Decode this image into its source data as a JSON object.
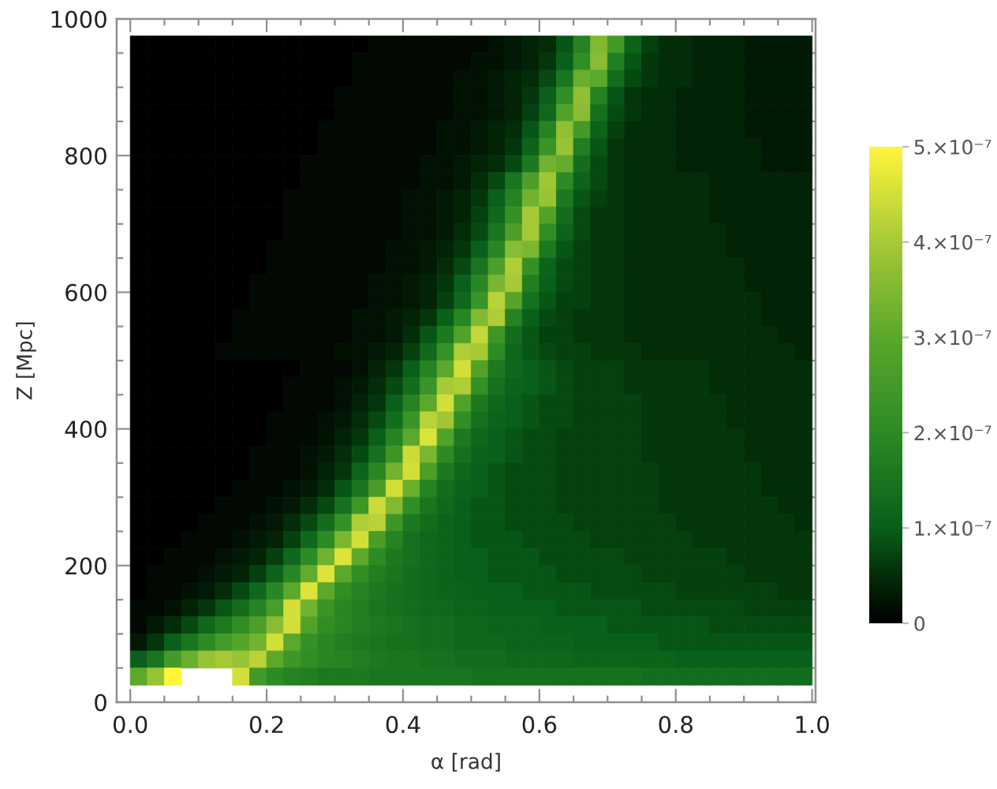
{
  "chart_data": {
    "type": "heatmap",
    "xlabel": "α [rad]",
    "ylabel": "Z [Mpc]",
    "xlim": [
      -0.02,
      1.005
    ],
    "ylim": [
      0,
      1000
    ],
    "xticks": [
      {
        "value": 0,
        "label": "0.0"
      },
      {
        "value": 0.05,
        "label": null
      },
      {
        "value": 0.1,
        "label": null
      },
      {
        "value": 0.15,
        "label": null
      },
      0.2,
      {
        "value": 0.25,
        "label": null
      },
      {
        "value": 0.3,
        "label": null
      },
      {
        "value": 0.35,
        "label": null
      },
      0.4,
      {
        "value": 0.45,
        "label": null
      },
      {
        "value": 0.5,
        "label": null
      },
      {
        "value": 0.55,
        "label": null
      },
      0.6,
      {
        "value": 0.65,
        "label": null
      },
      {
        "value": 0.7,
        "label": null
      },
      {
        "value": 0.75,
        "label": null
      },
      0.8,
      {
        "value": 0.85,
        "label": null
      },
      {
        "value": 0.9,
        "label": null
      },
      {
        "value": 0.95,
        "label": null
      },
      {
        "value": 1,
        "label": "1.0"
      }
    ],
    "yticks": [
      0,
      {
        "value": 50,
        "label": null
      },
      {
        "value": 100,
        "label": null
      },
      {
        "value": 150,
        "label": null
      },
      200,
      {
        "value": 250,
        "label": null
      },
      {
        "value": 300,
        "label": null
      },
      {
        "value": 350,
        "label": null
      },
      400,
      {
        "value": 450,
        "label": null
      },
      {
        "value": 500,
        "label": null
      },
      {
        "value": 550,
        "label": null
      },
      600,
      {
        "value": 650,
        "label": null
      },
      {
        "value": 700,
        "label": null
      },
      {
        "value": 750,
        "label": null
      },
      800,
      {
        "value": 850,
        "label": null
      },
      {
        "value": 900,
        "label": null
      },
      {
        "value": 950,
        "label": null
      },
      1000
    ],
    "clim": [
      0,
      5e-07
    ],
    "cticks": [
      0,
      {
        "value": 1e-07,
        "label": "1.×10⁻⁷"
      },
      {
        "value": 2e-07,
        "label": "2.×10⁻⁷"
      },
      {
        "value": 3e-07,
        "label": "3.×10⁻⁷"
      },
      {
        "value": 4e-07,
        "label": "4.×10⁻⁷"
      },
      {
        "value": 5e-07,
        "label": "5.×10⁻⁷"
      }
    ],
    "x": [
      0.0125,
      0.0375,
      0.0625,
      0.0875,
      0.1125,
      0.1375,
      0.1625,
      0.1875,
      0.2125,
      0.2375,
      0.2625,
      0.2875,
      0.3125,
      0.3375,
      0.3625,
      0.3875,
      0.4125,
      0.4375,
      0.4625,
      0.4875,
      0.5125,
      0.5375,
      0.5625,
      0.5875,
      0.6125,
      0.6375,
      0.6625,
      0.6875,
      0.7125,
      0.7375,
      0.7625,
      0.7875,
      0.8125,
      0.8375,
      0.8625,
      0.8875,
      0.9125,
      0.9375,
      0.9625,
      0.9875
    ],
    "y": [
      962.5,
      937.5,
      912.5,
      887.5,
      862.5,
      837.5,
      812.5,
      787.5,
      762.5,
      737.5,
      712.5,
      687.5,
      662.5,
      637.5,
      612.5,
      587.5,
      562.5,
      537.5,
      512.5,
      487.5,
      462.5,
      437.5,
      412.5,
      387.5,
      362.5,
      337.5,
      312.5,
      287.5,
      262.5,
      237.5,
      212.5,
      187.5,
      162.5,
      137.5,
      112.5,
      87.5,
      62.5,
      37.5
    ],
    "cells": [
      [
        0,
        0,
        0,
        0,
        0,
        0,
        0,
        0,
        0,
        0,
        0,
        0,
        0,
        0,
        1e-08,
        1e-08,
        1e-08,
        1e-08,
        1e-08,
        1e-08,
        1e-08,
        2e-08,
        3e-08,
        4e-08,
        5e-08,
        9e-08,
        1.8e-07,
        3.5e-07,
        2.5e-07,
        1.1e-07,
        7e-08,
        5e-08,
        5e-08,
        4e-08,
        4e-08,
        4e-08,
        3e-08,
        3e-08,
        3e-08,
        3e-08
      ],
      [
        0,
        0,
        0,
        0,
        0,
        0,
        0,
        0,
        0,
        0,
        0,
        0,
        0,
        1e-08,
        1e-08,
        1e-08,
        1e-08,
        1e-08,
        1e-08,
        1e-08,
        2e-08,
        2e-08,
        3e-08,
        4e-08,
        6e-08,
        1e-07,
        2.1e-07,
        3.6e-07,
        1.7e-07,
        9e-08,
        6e-08,
        5e-08,
        5e-08,
        4e-08,
        4e-08,
        4e-08,
        3e-08,
        3e-08,
        3e-08,
        3e-08
      ],
      [
        0,
        0,
        0,
        0,
        0,
        0,
        0,
        0,
        0,
        0,
        0,
        0,
        0,
        1e-08,
        1e-08,
        1e-08,
        1e-08,
        1e-08,
        1e-08,
        2e-08,
        2e-08,
        3e-08,
        4e-08,
        5e-08,
        8e-08,
        1.5e-07,
        3.2e-07,
        3e-07,
        1.3e-07,
        8e-08,
        6e-08,
        5e-08,
        5e-08,
        4e-08,
        4e-08,
        4e-08,
        3e-08,
        3e-08,
        3e-08,
        3e-08
      ],
      [
        0,
        0,
        0,
        0,
        0,
        0,
        0,
        0,
        0,
        0,
        0,
        0,
        1e-08,
        1e-08,
        1e-08,
        1e-08,
        1e-08,
        1e-08,
        1e-08,
        2e-08,
        2e-08,
        3e-08,
        4e-08,
        6e-08,
        1e-07,
        2.1e-07,
        3.7e-07,
        1.8e-07,
        9e-08,
        6e-08,
        5e-08,
        5e-08,
        4e-08,
        4e-08,
        4e-08,
        4e-08,
        3e-08,
        3e-08,
        3e-08,
        3e-08
      ],
      [
        0,
        0,
        0,
        0,
        0,
        0,
        0,
        0,
        0,
        0,
        0,
        0,
        1e-08,
        1e-08,
        1e-08,
        1e-08,
        1e-08,
        1e-08,
        1e-08,
        2e-08,
        2e-08,
        3e-08,
        4e-08,
        7e-08,
        1.2e-07,
        2.8e-07,
        3.6e-07,
        1.4e-07,
        8e-08,
        6e-08,
        5e-08,
        5e-08,
        4e-08,
        4e-08,
        4e-08,
        4e-08,
        3e-08,
        3e-08,
        3e-08,
        3e-08
      ],
      [
        0,
        0,
        0,
        0,
        0,
        0,
        0,
        0,
        0,
        0,
        0,
        1e-08,
        1e-08,
        1e-08,
        1e-08,
        1e-08,
        1e-08,
        1e-08,
        2e-08,
        2e-08,
        3e-08,
        4e-08,
        5e-08,
        9e-08,
        1.8e-07,
        3.7e-07,
        2.5e-07,
        1.1e-07,
        7e-08,
        5e-08,
        5e-08,
        5e-08,
        4e-08,
        4e-08,
        4e-08,
        4e-08,
        3e-08,
        3e-08,
        3e-08,
        3e-08
      ],
      [
        0,
        0,
        0,
        0,
        0,
        0,
        0,
        0,
        0,
        0,
        0,
        1e-08,
        1e-08,
        1e-08,
        1e-08,
        1e-08,
        1e-08,
        1e-08,
        2e-08,
        2e-08,
        3e-08,
        4e-08,
        6e-08,
        1.1e-07,
        2.3e-07,
        3.8e-07,
        1.7e-07,
        9e-08,
        6e-08,
        5e-08,
        5e-08,
        5e-08,
        4e-08,
        4e-08,
        4e-08,
        4e-08,
        4e-08,
        3e-08,
        3e-08,
        3e-08
      ],
      [
        0,
        0,
        0,
        0,
        0,
        0,
        0,
        0,
        0,
        0,
        1e-08,
        1e-08,
        1e-08,
        1e-08,
        1e-08,
        1e-08,
        1e-08,
        2e-08,
        2e-08,
        3e-08,
        4e-08,
        5e-08,
        8e-08,
        1.6e-07,
        3.3e-07,
        3.1e-07,
        1.3e-07,
        8e-08,
        6e-08,
        5e-08,
        5e-08,
        5e-08,
        4e-08,
        4e-08,
        4e-08,
        4e-08,
        4e-08,
        3e-08,
        3e-08,
        3e-08
      ],
      [
        0,
        0,
        0,
        0,
        0,
        0,
        0,
        0,
        0,
        0,
        1e-08,
        1e-08,
        1e-08,
        1e-08,
        1e-08,
        1e-08,
        1e-08,
        2e-08,
        2e-08,
        3e-08,
        5e-08,
        8e-08,
        1.5e-07,
        2.7e-07,
        3.9e-07,
        2e-07,
        1.1e-07,
        8e-08,
        6e-08,
        5e-08,
        5e-08,
        5e-08,
        5e-08,
        5e-08,
        4e-08,
        4e-08,
        4e-08,
        4e-08,
        4e-08,
        4e-08
      ],
      [
        0,
        0,
        0,
        0,
        0,
        0,
        0,
        0,
        0,
        1e-08,
        1e-08,
        1e-08,
        1e-08,
        1e-08,
        1e-08,
        1e-08,
        2e-08,
        2e-08,
        3e-08,
        4e-08,
        6e-08,
        1e-07,
        1.8e-07,
        3.3e-07,
        3.8e-07,
        1.6e-07,
        9e-08,
        7e-08,
        6e-08,
        5e-08,
        5e-08,
        5e-08,
        5e-08,
        5e-08,
        4e-08,
        4e-08,
        4e-08,
        4e-08,
        4e-08,
        4e-08
      ],
      [
        0,
        0,
        0,
        0,
        0,
        0,
        0,
        0,
        0,
        1e-08,
        1e-08,
        1e-08,
        1e-08,
        1e-08,
        1e-08,
        1e-08,
        2e-08,
        2e-08,
        3e-08,
        4e-08,
        7e-08,
        1.2e-07,
        2.2e-07,
        4e-07,
        2.8e-07,
        1.3e-07,
        8e-08,
        6e-08,
        6e-08,
        5e-08,
        5e-08,
        5e-08,
        5e-08,
        5e-08,
        4e-08,
        4e-08,
        4e-08,
        4e-08,
        4e-08,
        4e-08
      ],
      [
        0,
        0,
        0,
        0,
        0,
        0,
        0,
        0,
        0,
        1e-08,
        1e-08,
        1e-08,
        1e-08,
        1e-08,
        1e-08,
        1e-08,
        2e-08,
        2e-08,
        3e-08,
        5e-08,
        8e-08,
        1.5e-07,
        2.7e-07,
        4e-07,
        2.1e-07,
        1.1e-07,
        8e-08,
        6e-08,
        6e-08,
        5e-08,
        5e-08,
        5e-08,
        5e-08,
        5e-08,
        5e-08,
        4e-08,
        4e-08,
        4e-08,
        4e-08,
        4e-08
      ],
      [
        0,
        0,
        0,
        0,
        0,
        0,
        0,
        0,
        1e-08,
        1e-08,
        1e-08,
        1e-08,
        1e-08,
        1e-08,
        1e-08,
        2e-08,
        2e-08,
        3e-08,
        4e-08,
        6e-08,
        1e-07,
        1.9e-07,
        3.6e-07,
        3.4e-07,
        1.6e-07,
        9e-08,
        7e-08,
        6e-08,
        6e-08,
        5e-08,
        5e-08,
        5e-08,
        5e-08,
        5e-08,
        5e-08,
        4e-08,
        4e-08,
        4e-08,
        4e-08,
        4e-08
      ],
      [
        0,
        0,
        0,
        0,
        0,
        0,
        0,
        0,
        1e-08,
        1e-08,
        1e-08,
        1e-08,
        1e-08,
        1e-08,
        1e-08,
        2e-08,
        2e-08,
        3e-08,
        5e-08,
        8e-08,
        1.5e-07,
        2.7e-07,
        4.1e-07,
        2.2e-07,
        1.1e-07,
        8e-08,
        7e-08,
        6e-08,
        6e-08,
        5e-08,
        5e-08,
        5e-08,
        5e-08,
        5e-08,
        5e-08,
        5e-08,
        4e-08,
        4e-08,
        4e-08,
        4e-08
      ],
      [
        0,
        0,
        0,
        0,
        0,
        0,
        0,
        1e-08,
        1e-08,
        1e-08,
        1e-08,
        1e-08,
        1e-08,
        1e-08,
        2e-08,
        2e-08,
        3e-08,
        4e-08,
        6e-08,
        1e-07,
        1.9e-07,
        3.4e-07,
        4e-07,
        1.7e-07,
        1e-07,
        8e-08,
        7e-08,
        6e-08,
        6e-08,
        5e-08,
        5e-08,
        5e-08,
        5e-08,
        5e-08,
        5e-08,
        5e-08,
        4e-08,
        4e-08,
        4e-08,
        4e-08
      ],
      [
        0,
        0,
        0,
        0,
        0,
        0,
        0,
        1e-08,
        1e-08,
        1e-08,
        1e-08,
        1e-08,
        1e-08,
        1e-08,
        2e-08,
        2e-08,
        3e-08,
        4e-08,
        7e-08,
        1.2e-07,
        2.3e-07,
        4.2e-07,
        2.9e-07,
        1.4e-07,
        9e-08,
        7e-08,
        7e-08,
        6e-08,
        6e-08,
        5e-08,
        5e-08,
        5e-08,
        5e-08,
        5e-08,
        5e-08,
        5e-08,
        5e-08,
        4e-08,
        4e-08,
        4e-08
      ],
      [
        0,
        0,
        0,
        0,
        0,
        0,
        1e-08,
        1e-08,
        1e-08,
        1e-08,
        1e-08,
        1e-08,
        1e-08,
        2e-08,
        2e-08,
        3e-08,
        4e-08,
        6e-08,
        1e-07,
        1.9e-07,
        3.5e-07,
        4.1e-07,
        1.8e-07,
        1e-07,
        8e-08,
        7e-08,
        6e-08,
        6e-08,
        6e-08,
        5e-08,
        5e-08,
        5e-08,
        5e-08,
        5e-08,
        5e-08,
        5e-08,
        5e-08,
        4e-08,
        4e-08,
        4e-08
      ],
      [
        0,
        0,
        0,
        0,
        0,
        0,
        1e-08,
        1e-08,
        1e-08,
        1e-08,
        1e-08,
        1e-08,
        1e-08,
        2e-08,
        2e-08,
        3e-08,
        5e-08,
        9e-08,
        1.6e-07,
        2.8e-07,
        4.3e-07,
        2.4e-07,
        1.3e-07,
        9e-08,
        7e-08,
        7e-08,
        6e-08,
        6e-08,
        6e-08,
        5e-08,
        5e-08,
        5e-08,
        5e-08,
        5e-08,
        5e-08,
        5e-08,
        5e-08,
        5e-08,
        4e-08,
        4e-08
      ],
      [
        0,
        0,
        0,
        0,
        0,
        1e-08,
        1e-08,
        1e-08,
        1e-08,
        1e-08,
        1e-08,
        1e-08,
        2e-08,
        2e-08,
        3e-08,
        4e-08,
        7e-08,
        1.2e-07,
        2.2e-07,
        4.1e-07,
        4e-07,
        2e-07,
        1.2e-07,
        9e-08,
        8e-08,
        7e-08,
        7e-08,
        6e-08,
        6e-08,
        6e-08,
        5e-08,
        5e-08,
        5e-08,
        5e-08,
        5e-08,
        5e-08,
        5e-08,
        5e-08,
        5e-08,
        4e-08
      ],
      [
        0,
        0,
        0,
        0,
        0,
        0,
        0,
        0,
        0,
        0,
        1e-08,
        1e-08,
        1e-08,
        2e-08,
        4e-08,
        6e-08,
        1e-07,
        1.8e-07,
        3e-07,
        4.5e-07,
        2.8e-07,
        1.6e-07,
        1.2e-07,
        1e-07,
        9e-08,
        8e-08,
        7e-08,
        7e-08,
        7e-08,
        6e-08,
        6e-08,
        6e-08,
        6e-08,
        6e-08,
        5e-08,
        5e-08,
        5e-08,
        5e-08,
        5e-08,
        5e-08
      ],
      [
        0,
        0,
        0,
        0,
        0,
        0,
        0,
        0,
        0,
        1e-08,
        1e-08,
        1e-08,
        2e-08,
        3e-08,
        5e-08,
        8e-08,
        1.3e-07,
        2.3e-07,
        4e-07,
        4.1e-07,
        2.2e-07,
        1.4e-07,
        1.1e-07,
        1e-07,
        9e-08,
        8e-08,
        7e-08,
        7e-08,
        7e-08,
        6e-08,
        6e-08,
        6e-08,
        6e-08,
        6e-08,
        5e-08,
        5e-08,
        5e-08,
        5e-08,
        5e-08,
        5e-08
      ],
      [
        0,
        0,
        0,
        0,
        0,
        0,
        0,
        0,
        0,
        1e-08,
        1e-08,
        1e-08,
        2e-08,
        4e-08,
        6e-08,
        1e-07,
        1.8e-07,
        3e-07,
        4.5e-07,
        2.8e-07,
        1.6e-07,
        1.2e-07,
        1e-07,
        9e-08,
        8e-08,
        8e-08,
        7e-08,
        7e-08,
        7e-08,
        7e-08,
        6e-08,
        6e-08,
        6e-08,
        6e-08,
        6e-08,
        5e-08,
        5e-08,
        5e-08,
        5e-08,
        5e-08
      ],
      [
        0,
        0,
        0,
        0,
        0,
        0,
        0,
        0,
        1e-08,
        1e-08,
        1e-08,
        2e-08,
        3e-08,
        5e-08,
        8e-08,
        1.3e-07,
        2.3e-07,
        4.2e-07,
        3.9e-07,
        2.1e-07,
        1.4e-07,
        1.1e-07,
        1e-07,
        9e-08,
        8e-08,
        8e-08,
        7e-08,
        7e-08,
        7e-08,
        7e-08,
        6e-08,
        6e-08,
        6e-08,
        6e-08,
        6e-08,
        5e-08,
        5e-08,
        5e-08,
        5e-08,
        5e-08
      ],
      [
        0,
        0,
        0,
        0,
        0,
        0,
        0,
        0,
        1e-08,
        1e-08,
        1e-08,
        2e-08,
        4e-08,
        6e-08,
        1e-07,
        1.8e-07,
        3e-07,
        4.6e-07,
        2.8e-07,
        1.6e-07,
        1.2e-07,
        1e-07,
        9e-08,
        8e-08,
        8e-08,
        7e-08,
        7e-08,
        7e-08,
        7e-08,
        7e-08,
        6e-08,
        6e-08,
        6e-08,
        6e-08,
        6e-08,
        6e-08,
        5e-08,
        5e-08,
        5e-08,
        5e-08
      ],
      [
        0,
        0,
        0,
        0,
        0,
        0,
        0,
        1e-08,
        1e-08,
        1e-08,
        2e-08,
        3e-08,
        5e-08,
        8e-08,
        1.4e-07,
        2.4e-07,
        4.4e-07,
        3.4e-07,
        2e-07,
        1.4e-07,
        1.1e-07,
        1e-07,
        9e-08,
        8e-08,
        8e-08,
        7e-08,
        7e-08,
        7e-08,
        7e-08,
        7e-08,
        6e-08,
        6e-08,
        6e-08,
        6e-08,
        6e-08,
        6e-08,
        5e-08,
        5e-08,
        5e-08,
        5e-08
      ],
      [
        0,
        0,
        0,
        0,
        0,
        0,
        0,
        1e-08,
        1e-08,
        1e-08,
        2e-08,
        4e-08,
        6e-08,
        1.1e-07,
        1.9e-07,
        3.3e-07,
        4.5e-07,
        2.7e-07,
        1.6e-07,
        1.2e-07,
        1e-07,
        9e-08,
        8e-08,
        8e-08,
        8e-08,
        7e-08,
        7e-08,
        7e-08,
        7e-08,
        7e-08,
        7e-08,
        6e-08,
        6e-08,
        6e-08,
        6e-08,
        6e-08,
        6e-08,
        5e-08,
        5e-08,
        5e-08
      ],
      [
        0,
        0,
        0,
        0,
        0,
        0,
        1e-08,
        1e-08,
        1e-08,
        2e-08,
        3e-08,
        5e-08,
        9e-08,
        1.5e-07,
        2.6e-07,
        4.5e-07,
        3.2e-07,
        1.8e-07,
        1.3e-07,
        1.1e-07,
        1e-07,
        9e-08,
        8e-08,
        8e-08,
        8e-08,
        7e-08,
        7e-08,
        7e-08,
        7e-08,
        7e-08,
        7e-08,
        6e-08,
        6e-08,
        6e-08,
        6e-08,
        6e-08,
        6e-08,
        5e-08,
        5e-08,
        5e-08
      ],
      [
        0,
        0,
        0,
        0,
        0,
        1e-08,
        1e-08,
        1e-08,
        2e-08,
        3e-08,
        5e-08,
        8e-08,
        1.4e-07,
        2.4e-07,
        4.4e-07,
        3.5e-07,
        2.1e-07,
        1.5e-07,
        1.2e-07,
        1e-07,
        9e-08,
        9e-08,
        8e-08,
        8e-08,
        8e-08,
        7e-08,
        7e-08,
        7e-08,
        7e-08,
        7e-08,
        7e-08,
        6e-08,
        6e-08,
        6e-08,
        6e-08,
        6e-08,
        6e-08,
        6e-08,
        5e-08,
        5e-08
      ],
      [
        0,
        0,
        0,
        0,
        1e-08,
        1e-08,
        1e-08,
        2e-08,
        3e-08,
        5e-08,
        8e-08,
        1.3e-07,
        2.2e-07,
        4.1e-07,
        4.2e-07,
        2.4e-07,
        1.6e-07,
        1.3e-07,
        1.1e-07,
        1e-07,
        9e-08,
        9e-08,
        8e-08,
        8e-08,
        8e-08,
        8e-08,
        7e-08,
        7e-08,
        7e-08,
        7e-08,
        7e-08,
        7e-08,
        6e-08,
        6e-08,
        6e-08,
        6e-08,
        6e-08,
        6e-08,
        6e-08,
        5e-08
      ],
      [
        0,
        0,
        0,
        1e-08,
        1e-08,
        1e-08,
        2e-08,
        3e-08,
        4e-08,
        7e-08,
        1.2e-07,
        2e-07,
        3.4e-07,
        4.5e-07,
        2.6e-07,
        1.8e-07,
        1.4e-07,
        1.2e-07,
        1.1e-07,
        1e-07,
        9e-08,
        9e-08,
        9e-08,
        8e-08,
        8e-08,
        8e-08,
        8e-08,
        7e-08,
        7e-08,
        7e-08,
        7e-08,
        7e-08,
        7e-08,
        6e-08,
        6e-08,
        6e-08,
        6e-08,
        6e-08,
        6e-08,
        6e-08
      ],
      [
        0,
        0,
        1e-08,
        1e-08,
        1e-08,
        2e-08,
        3e-08,
        4e-08,
        7e-08,
        1.2e-07,
        2e-07,
        3.3e-07,
        4.6e-07,
        3e-07,
        2e-07,
        1.6e-07,
        1.4e-07,
        1.2e-07,
        1.1e-07,
        1e-07,
        1e-07,
        9e-08,
        9e-08,
        9e-08,
        8e-08,
        8e-08,
        8e-08,
        8e-08,
        8e-08,
        7e-08,
        7e-08,
        7e-08,
        7e-08,
        7e-08,
        7e-08,
        6e-08,
        6e-08,
        6e-08,
        6e-08,
        6e-08
      ],
      [
        0,
        1e-08,
        1e-08,
        1e-08,
        2e-08,
        3e-08,
        4e-08,
        7e-08,
        1.1e-07,
        1.9e-07,
        3.1e-07,
        4.6e-07,
        3e-07,
        2.1e-07,
        1.7e-07,
        1.5e-07,
        1.3e-07,
        1.2e-07,
        1.1e-07,
        1e-07,
        1e-07,
        9e-08,
        9e-08,
        9e-08,
        9e-08,
        8e-08,
        8e-08,
        8e-08,
        8e-08,
        8e-08,
        7e-08,
        7e-08,
        7e-08,
        7e-08,
        7e-08,
        7e-08,
        6e-08,
        6e-08,
        6e-08,
        6e-08
      ],
      [
        0,
        1e-08,
        1e-08,
        2e-08,
        3e-08,
        5e-08,
        8e-08,
        1.2e-07,
        1.9e-07,
        3e-07,
        4.6e-07,
        3e-07,
        2.1e-07,
        1.8e-07,
        1.6e-07,
        1.4e-07,
        1.3e-07,
        1.2e-07,
        1.1e-07,
        1.1e-07,
        1e-07,
        1e-07,
        1e-07,
        9e-08,
        9e-08,
        9e-08,
        9e-08,
        8e-08,
        8e-08,
        8e-08,
        8e-08,
        8e-08,
        7e-08,
        7e-08,
        7e-08,
        7e-08,
        7e-08,
        7e-08,
        6e-08,
        6e-08
      ],
      [
        1e-08,
        1e-08,
        2e-08,
        4e-08,
        6e-08,
        9e-08,
        1.3e-07,
        1.8e-07,
        2.6e-07,
        4.5e-07,
        3.3e-07,
        2.3e-07,
        1.9e-07,
        1.7e-07,
        1.5e-07,
        1.4e-07,
        1.3e-07,
        1.2e-07,
        1.2e-07,
        1.1e-07,
        1.1e-07,
        1e-07,
        1e-07,
        1e-07,
        1e-07,
        9e-08,
        9e-08,
        9e-08,
        9e-08,
        9e-08,
        8e-08,
        8e-08,
        8e-08,
        8e-08,
        8e-08,
        8e-08,
        7e-08,
        7e-08,
        7e-08,
        7e-08
      ],
      [
        1e-08,
        3e-08,
        5e-08,
        8e-08,
        1.2e-07,
        1.6e-07,
        2.1e-07,
        2.7e-07,
        3.6e-07,
        4.5e-07,
        2.8e-07,
        2.1e-07,
        1.9e-07,
        1.7e-07,
        1.6e-07,
        1.5e-07,
        1.4e-07,
        1.3e-07,
        1.3e-07,
        1.2e-07,
        1.2e-07,
        1.1e-07,
        1.1e-07,
        1.1e-07,
        1e-07,
        1e-07,
        1e-07,
        1e-07,
        9e-08,
        9e-08,
        9e-08,
        9e-08,
        9e-08,
        9e-08,
        8e-08,
        8e-08,
        8e-08,
        8e-08,
        8e-08,
        8e-08
      ],
      [
        3e-08,
        6e-08,
        1e-07,
        1.5e-07,
        2e-07,
        2.5e-07,
        2.9e-07,
        3.3e-07,
        4.5e-07,
        3e-07,
        2.2e-07,
        1.9e-07,
        1.7e-07,
        1.6e-07,
        1.5e-07,
        1.4e-07,
        1.4e-07,
        1.3e-07,
        1.3e-07,
        1.2e-07,
        1.2e-07,
        1.2e-07,
        1.1e-07,
        1.1e-07,
        1.1e-07,
        1.1e-07,
        1e-07,
        1e-07,
        1e-07,
        1e-07,
        1e-07,
        9e-08,
        9e-08,
        9e-08,
        9e-08,
        9e-08,
        9e-08,
        9e-08,
        9e-08,
        9e-08
      ],
      [
        1e-07,
        1.5e-07,
        2.5e-07,
        3.2e-07,
        3.8e-07,
        4e-07,
        3.8e-07,
        4.2e-07,
        3e-07,
        2.4e-07,
        2.1e-07,
        1.9e-07,
        1.8e-07,
        1.7e-07,
        1.6e-07,
        1.5e-07,
        1.5e-07,
        1.4e-07,
        1.4e-07,
        1.3e-07,
        1.3e-07,
        1.3e-07,
        1.2e-07,
        1.2e-07,
        1.2e-07,
        1.2e-07,
        1.1e-07,
        1.1e-07,
        1.1e-07,
        1.1e-07,
        1.1e-07,
        1.1e-07,
        1e-07,
        1e-07,
        1e-07,
        1e-07,
        1e-07,
        1e-07,
        1e-07,
        1e-07
      ],
      [
        3e-07,
        3.8e-07,
        5e-07,
        null,
        null,
        null,
        4.5e-07,
        2.5e-07,
        2e-07,
        1.8e-07,
        1.7e-07,
        1.6e-07,
        1.6e-07,
        1.6e-07,
        1.5e-07,
        1.5e-07,
        1.5e-07,
        1.5e-07,
        1.5e-07,
        1.5e-07,
        1.4e-07,
        1.4e-07,
        1.4e-07,
        1.4e-07,
        1.4e-07,
        1.4e-07,
        1.4e-07,
        1.4e-07,
        1.4e-07,
        1.4e-07,
        1.3e-07,
        1.3e-07,
        1.3e-07,
        1.3e-07,
        1.3e-07,
        1.3e-07,
        1.3e-07,
        1.3e-07,
        1.3e-07,
        1.3e-07
      ]
    ]
  }
}
